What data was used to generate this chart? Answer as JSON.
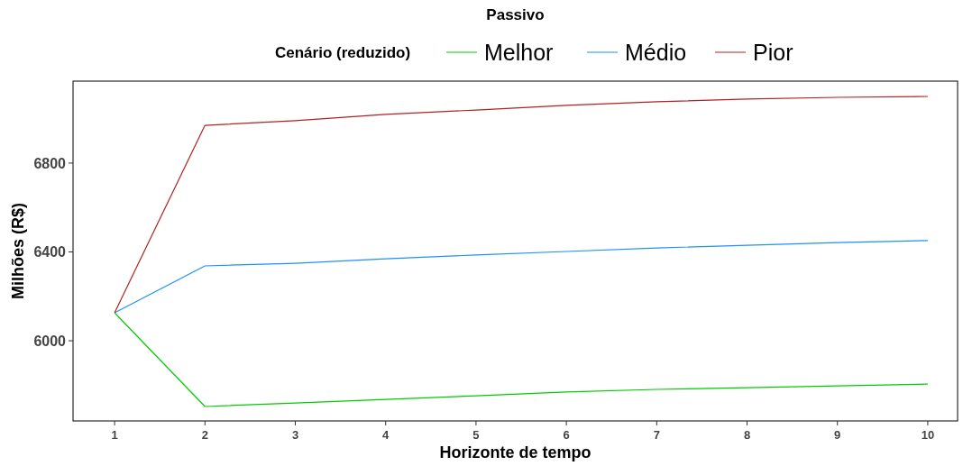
{
  "chart_data": {
    "type": "line",
    "title": "Passivo",
    "xlabel": "Horizonte de tempo",
    "ylabel": "Milhões (R$)",
    "legend_title": "Cenário (reduzido)",
    "legend": "top",
    "grid": false,
    "x": [
      1,
      2,
      3,
      4,
      5,
      6,
      7,
      8,
      9,
      10
    ],
    "xlim": [
      0.54,
      10.33
    ],
    "xticks": [
      1,
      2,
      3,
      4,
      5,
      6,
      7,
      8,
      9,
      10
    ],
    "ylim": [
      5639,
      7169
    ],
    "yticks": [
      6000,
      6400,
      6800
    ],
    "series": [
      {
        "name": "Melhor",
        "color": "#00cc00",
        "values": [
          6126,
          5704,
          5720,
          5736,
          5752,
          5769,
          5781,
          5789,
          5797,
          5805
        ]
      },
      {
        "name": "Médio",
        "color": "#1e90ff",
        "values": [
          6126,
          6337,
          6349,
          6369,
          6386,
          6402,
          6418,
          6430,
          6442,
          6451
        ]
      },
      {
        "name": "Pior",
        "color": "#b22222",
        "values": [
          6126,
          6970,
          6991,
          7019,
          7039,
          7060,
          7076,
          7088,
          7096,
          7100
        ]
      }
    ]
  }
}
